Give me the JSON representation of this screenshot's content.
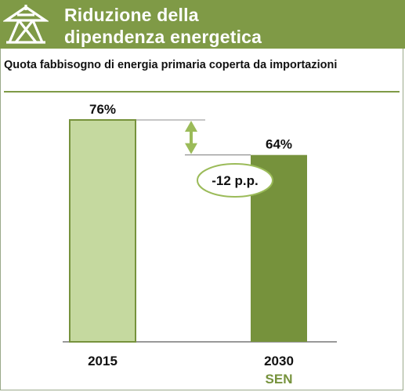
{
  "header": {
    "title_line1": "Riduzione della",
    "title_line2": "dipendenza energetica",
    "logo_icon": "energy-pylon-icon"
  },
  "subtitle": "Quota fabbisogno di energia primaria coperta da importazioni",
  "colors": {
    "header_bg": "#7f9a46",
    "bar_2015": "#c5d99f",
    "bar_2030": "#76923c",
    "arrow": "#9bbb59",
    "sen_label": "#76923c"
  },
  "chart_data": {
    "type": "bar",
    "categories": [
      "2015",
      "2030"
    ],
    "category_sublabels": [
      "",
      "SEN"
    ],
    "values": [
      76,
      64
    ],
    "value_labels": [
      "76%",
      "64%"
    ],
    "unit": "%",
    "ylim": [
      0,
      76
    ],
    "grid": false,
    "annotation": "-12 p.p."
  }
}
